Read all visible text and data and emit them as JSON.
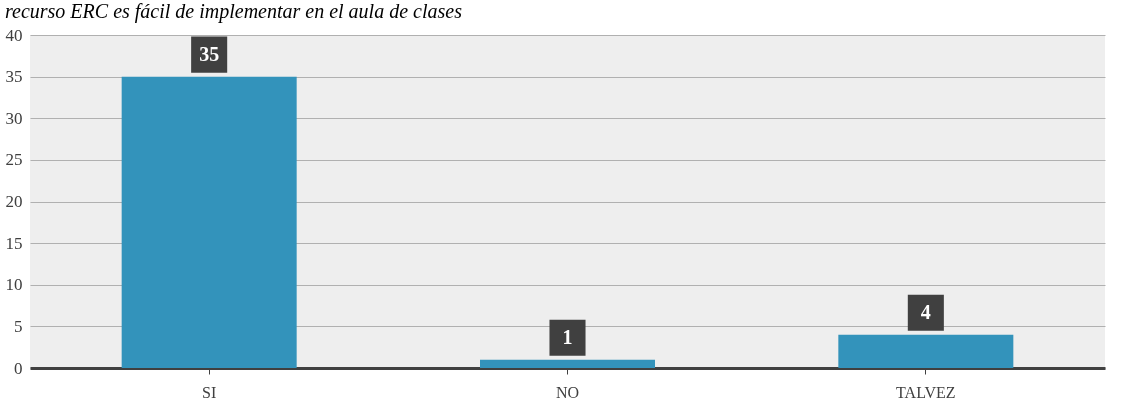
{
  "chart_data": {
    "type": "bar",
    "title": "recurso ERC es fácil de implementar en el aula de clases",
    "categories": [
      "SI",
      "NO",
      "TALVEZ"
    ],
    "values": [
      35,
      1,
      4
    ],
    "color": "#3393bb",
    "ylim": [
      0,
      40
    ],
    "yticks": [
      0,
      5,
      10,
      15,
      20,
      25,
      30,
      35,
      40
    ],
    "grid": "y",
    "data_labels": true
  }
}
